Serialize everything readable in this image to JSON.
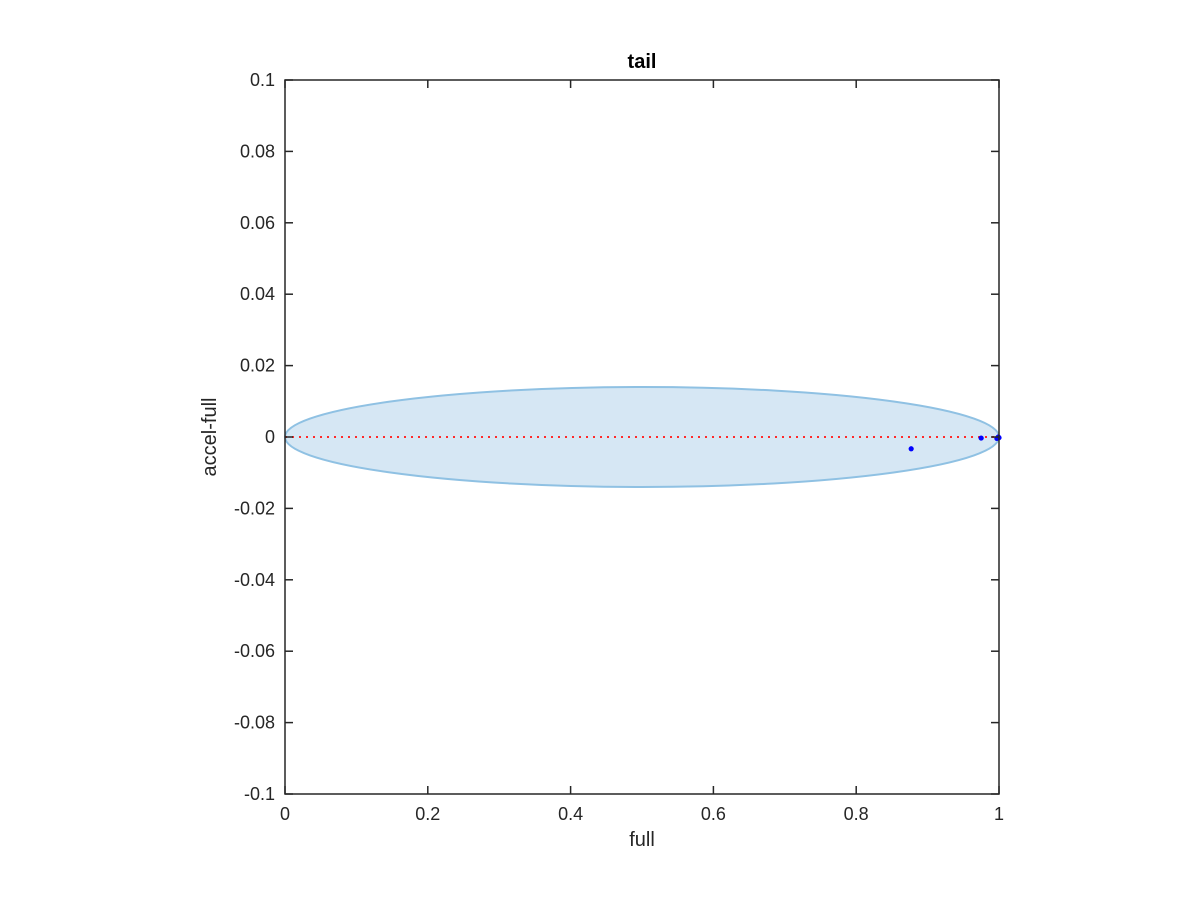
{
  "chart_data": {
    "type": "scatter",
    "title": "tail",
    "xlabel": "full",
    "ylabel": "accel-full",
    "xlim": [
      0,
      1
    ],
    "ylim": [
      -0.1,
      0.1
    ],
    "xticks": [
      "0",
      "0.2",
      "0.4",
      "0.6",
      "0.8",
      "1"
    ],
    "yticks": [
      "0.1",
      "0.08",
      "0.06",
      "0.04",
      "0.02",
      "0",
      "-0.02",
      "-0.04",
      "-0.06",
      "-0.08",
      "-0.1"
    ],
    "grid": false,
    "ellipse": {
      "center": [
        0.5,
        0.0
      ],
      "semi_axes": [
        0.5,
        0.014
      ]
    },
    "reference_line": {
      "y": 0.0,
      "x": [
        0,
        1
      ]
    },
    "points": [
      {
        "x": 0.877,
        "y": -0.0033
      },
      {
        "x": 0.975,
        "y": -0.0003
      },
      {
        "x": 0.997,
        "y": -0.0004
      },
      {
        "x": 0.999,
        "y": 0.0
      },
      {
        "x": 1.0,
        "y": -0.0002
      }
    ],
    "colors": {
      "ellipse_fill": "#d6e7f4",
      "ellipse_edge": "#8fc1e3",
      "reference_line": "#ff2a2a",
      "points": "#0000ff",
      "axes": "#262626"
    }
  }
}
